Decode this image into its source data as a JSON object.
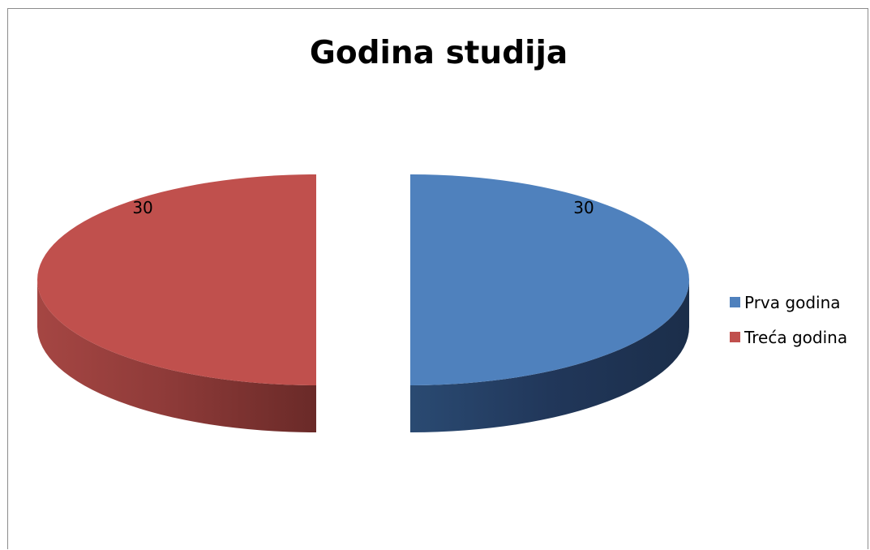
{
  "chart_data": {
    "type": "pie",
    "style": "3d-exploded",
    "title": "Godina studija",
    "slices": [
      {
        "label": "Prva godina",
        "value": 30,
        "color": "#4F81BD",
        "data_label": "30"
      },
      {
        "label": "Treća godina",
        "value": 30,
        "color": "#C0504D",
        "data_label": "30"
      }
    ],
    "legend_position": "right"
  }
}
